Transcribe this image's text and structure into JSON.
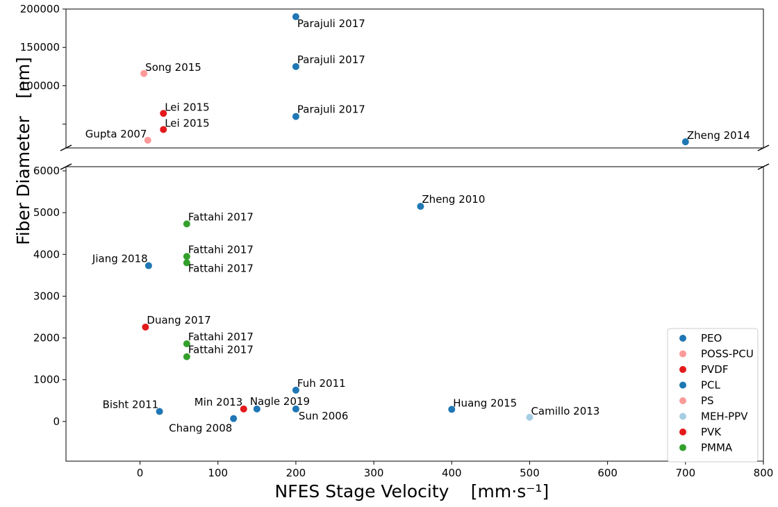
{
  "chart_data": {
    "type": "scatter",
    "xlabel": "NFES Stage Velocity",
    "xlabel_unit": "[mm·s⁻¹]",
    "ylabel": "Fiber Diameter",
    "ylabel_unit": "[nm]",
    "xlim": [
      -95,
      800
    ],
    "x_ticks": [
      0,
      100,
      200,
      300,
      400,
      500,
      600,
      700,
      800
    ],
    "broken_y_axis": true,
    "lower_ylim": [
      -950,
      6100
    ],
    "lower_y_ticks": [
      0,
      1000,
      2000,
      3000,
      4000,
      5000,
      6000
    ],
    "upper_ylim": [
      19000,
      200000
    ],
    "upper_y_ticks": [
      100000,
      150000,
      200000
    ],
    "upper_y_ticks_unlabeled": [
      50000
    ],
    "legend_position": "lower-right",
    "grid": false,
    "series": [
      {
        "name": "PEO",
        "color": "#1f77b4",
        "points": [
          {
            "x": 200,
            "y": 190000,
            "label": "Parajuli 2017"
          },
          {
            "x": 200,
            "y": 125000,
            "label": "Parajuli 2017"
          },
          {
            "x": 200,
            "y": 60000,
            "label": "Parajuli 2017"
          },
          {
            "x": 700,
            "y": 27000,
            "label": "Zheng 2014"
          },
          {
            "x": 360,
            "y": 5150,
            "label": "Zheng 2010"
          },
          {
            "x": 200,
            "y": 750,
            "label": "Fuh 2011"
          },
          {
            "x": 200,
            "y": 300,
            "label": "Sun 2006"
          },
          {
            "x": 120,
            "y": 70,
            "label": "Chang 2008"
          }
        ]
      },
      {
        "name": "POSS-PCU",
        "color": "#fb9a99",
        "points": [
          {
            "x": 5,
            "y": 116000,
            "label": "Song 2015"
          }
        ]
      },
      {
        "name": "PVDF",
        "color": "#e31a1c",
        "points": [
          {
            "x": 30,
            "y": 64000,
            "label": "Lei 2015"
          },
          {
            "x": 30,
            "y": 43000,
            "label": "Lei 2015"
          },
          {
            "x": 133,
            "y": 300,
            "label": "Min 2013"
          }
        ]
      },
      {
        "name": "PCL",
        "color": "#1f77b4",
        "points": [
          {
            "x": 11,
            "y": 3730,
            "label": "Jiang 2018"
          },
          {
            "x": 25,
            "y": 240,
            "label": "Bisht 2011"
          },
          {
            "x": 150,
            "y": 300,
            "label": "Nagle 2019"
          },
          {
            "x": 400,
            "y": 290,
            "label": "Huang 2015"
          }
        ]
      },
      {
        "name": "PS",
        "color": "#fb9a99",
        "points": [
          {
            "x": 10,
            "y": 29000,
            "label": "Gupta 2007"
          }
        ]
      },
      {
        "name": "MEH-PPV",
        "color": "#a6cee3",
        "points": [
          {
            "x": 500,
            "y": 100,
            "label": "Camillo 2013"
          }
        ]
      },
      {
        "name": "PVK",
        "color": "#e31a1c",
        "points": [
          {
            "x": 7,
            "y": 2260,
            "label": "Duang 2017"
          }
        ]
      },
      {
        "name": "PMMA",
        "color": "#33a02c",
        "points": [
          {
            "x": 60,
            "y": 4730,
            "label": "Fattahi 2017"
          },
          {
            "x": 60,
            "y": 3950,
            "label": "Fattahi 2017"
          },
          {
            "x": 60,
            "y": 3800,
            "label": "Fattahi 2017"
          },
          {
            "x": 60,
            "y": 1860,
            "label": "Fattahi 2017"
          },
          {
            "x": 60,
            "y": 1550,
            "label": "Fattahi 2017"
          }
        ]
      }
    ]
  }
}
